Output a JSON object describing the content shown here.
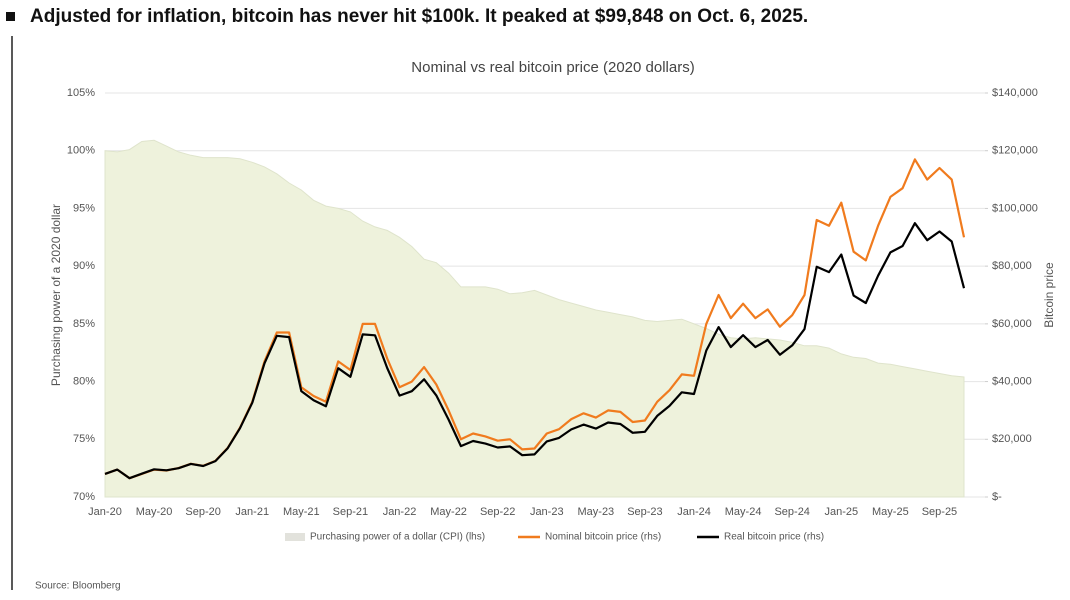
{
  "chart_data": {
    "type": "line",
    "title": "Adjusted for inflation, bitcoin has never hit $100k. It peaked at $99,848 on Oct. 6, 2025.",
    "subtitle": "Nominal vs real bitcoin price (2020 dollars)",
    "y_label": "Purchasing power of a 2020 dollar",
    "y2_label": "Bitcoin price",
    "source": "Source: Bloomberg",
    "categories": [
      "Jan-20",
      null,
      null,
      null,
      "May-20",
      null,
      null,
      null,
      "Sep-20",
      null,
      null,
      null,
      "Jan-21",
      null,
      null,
      null,
      "May-21",
      null,
      null,
      null,
      "Sep-21",
      null,
      null,
      null,
      "Jan-22",
      null,
      null,
      null,
      "May-22",
      null,
      null,
      null,
      "Sep-22",
      null,
      null,
      null,
      "Jan-23",
      null,
      null,
      null,
      "May-23",
      null,
      null,
      null,
      "Sep-23",
      null,
      null,
      null,
      "Jan-24",
      null,
      null,
      null,
      "May-24",
      null,
      null,
      null,
      "Sep-24",
      null,
      null,
      null,
      "Jan-25",
      null,
      null,
      null,
      "May-25",
      null,
      null,
      null,
      "Sep-25",
      null,
      null
    ],
    "ylim": [
      70,
      105
    ],
    "yticks": [
      {
        "value": 70,
        "label": "70%"
      },
      {
        "value": 75,
        "label": "75%"
      },
      {
        "value": 80,
        "label": "80%"
      },
      {
        "value": 85,
        "label": "85%"
      },
      {
        "value": 90,
        "label": "90%"
      },
      {
        "value": 95,
        "label": "95%"
      },
      {
        "value": 100,
        "label": "100%"
      },
      {
        "value": 105,
        "label": "105%"
      }
    ],
    "y2lim": [
      0,
      140000
    ],
    "y2ticks": [
      {
        "value": 0,
        "label": "$-"
      },
      {
        "value": 20000,
        "label": "$20,000"
      },
      {
        "value": 40000,
        "label": "$40,000"
      },
      {
        "value": 60000,
        "label": "$60,000"
      },
      {
        "value": 80000,
        "label": "$80,000"
      },
      {
        "value": 100000,
        "label": "$100,000"
      },
      {
        "value": 120000,
        "label": "$120,000"
      },
      {
        "value": 140000,
        "label": "$140,000"
      }
    ],
    "grid": true,
    "series": [
      {
        "name": "Purchasing power of a dollar (CPI) (lhs)",
        "type": "area",
        "color": "#eef2dc",
        "values": [
          100.0,
          99.9,
          100.1,
          100.8,
          100.9,
          100.4,
          99.9,
          99.6,
          99.4,
          99.4,
          99.4,
          99.3,
          99.0,
          98.6,
          98.0,
          97.2,
          96.6,
          95.7,
          95.2,
          95.0,
          94.7,
          93.9,
          93.4,
          93.1,
          92.5,
          91.7,
          90.6,
          90.3,
          89.4,
          88.2,
          88.2,
          88.2,
          88.0,
          87.6,
          87.7,
          87.9,
          87.5,
          87.1,
          86.8,
          86.5,
          86.2,
          86.0,
          85.8,
          85.6,
          85.3,
          85.2,
          85.3,
          85.4,
          85.0,
          84.6,
          84.1,
          83.8,
          83.7,
          83.8,
          83.7,
          83.6,
          83.4,
          83.1,
          83.1,
          82.9,
          82.4,
          82.1,
          82.0,
          81.6,
          81.5,
          81.3,
          81.1,
          80.9,
          80.7,
          80.5,
          80.4
        ]
      },
      {
        "name": "Nominal bitcoin price (rhs)",
        "type": "line",
        "axis": "y2",
        "color": "#f07b1e",
        "values": [
          8000,
          9500,
          6500,
          8000,
          9500,
          9200,
          10000,
          11500,
          10800,
          12500,
          17000,
          24000,
          33000,
          47000,
          57000,
          57000,
          38000,
          35000,
          33000,
          47000,
          44000,
          60000,
          60000,
          48000,
          38000,
          40000,
          45000,
          39000,
          30000,
          20000,
          22000,
          21000,
          19500,
          20000,
          16500,
          16800,
          22000,
          23500,
          27000,
          29000,
          27500,
          30000,
          29500,
          26000,
          26500,
          33000,
          37000,
          42500,
          42000,
          60000,
          70000,
          62000,
          67000,
          62000,
          65000,
          59000,
          63000,
          70000,
          96000,
          94000,
          102000,
          85000,
          82000,
          94000,
          104000,
          107000,
          117000,
          110000,
          114000,
          110000,
          90000
        ]
      },
      {
        "name": "Real bitcoin price (rhs)",
        "type": "line",
        "axis": "y2",
        "color": "#000000",
        "values": [
          8000,
          9490,
          6507,
          8064,
          9586,
          9237,
          9990,
          11454,
          10735,
          12425,
          16898,
          23832,
          32670,
          46342,
          55860,
          55404,
          36708,
          33495,
          31416,
          44650,
          41668,
          56340,
          56040,
          44688,
          35150,
          36680,
          40770,
          35217,
          26820,
          17640,
          19404,
          18522,
          17160,
          17520,
          14471,
          14767,
          19250,
          20469,
          23436,
          25085,
          23705,
          25800,
          25311,
          22256,
          22605,
          28116,
          31561,
          36295,
          35700,
          50760,
          58870,
          51956,
          56079,
          51956,
          54405,
          49324,
          52542,
          58170,
          79776,
          77926,
          84048,
          69785,
          67240,
          76704,
          84760,
          86991,
          94887,
          88990,
          91998,
          88550,
          72360
        ]
      }
    ]
  }
}
